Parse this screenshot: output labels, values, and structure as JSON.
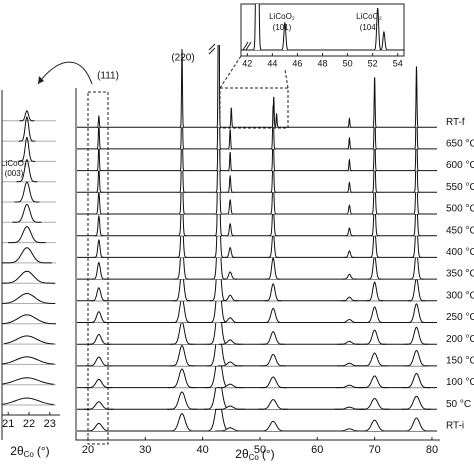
{
  "chart_data": [
    {
      "type": "stacked-pattern",
      "xlim": [
        18,
        81
      ],
      "xticks": [
        20,
        30,
        40,
        50,
        60,
        70,
        80
      ],
      "xlabel": {
        "main": "2θ",
        "sub": "Co",
        "unit": "(°)"
      },
      "annotations": [
        "(111)",
        "(220)"
      ],
      "series": [
        {
          "name": "RT-i",
          "width": 1.3,
          "peaks": {
            "x": [
              21.9,
              36.4,
              42.8,
              44.8,
              52.3,
              65.6,
              70.0,
              77.3
            ],
            "heights": [
              0.35,
              0.8,
              1.5,
              0.15,
              0.45,
              0.1,
              0.5,
              0.6
            ]
          }
        },
        {
          "name": "50 °C",
          "width": 1.3,
          "peaks": {
            "x": [
              21.9,
              36.4,
              42.8,
              44.8,
              52.3,
              65.6,
              70.0,
              77.3
            ],
            "heights": [
              0.35,
              0.8,
              1.55,
              0.15,
              0.45,
              0.1,
              0.5,
              0.6
            ]
          }
        },
        {
          "name": "100 °C",
          "width": 1.2,
          "peaks": {
            "x": [
              21.9,
              36.4,
              42.8,
              44.8,
              52.3,
              65.6,
              70.0,
              77.3
            ],
            "heights": [
              0.38,
              0.86,
              1.6,
              0.16,
              0.49,
              0.11,
              0.54,
              0.65
            ]
          }
        },
        {
          "name": "150 °C",
          "width": 1.1,
          "peaks": {
            "x": [
              21.9,
              36.4,
              42.8,
              44.8,
              52.3,
              65.6,
              70.0,
              77.3
            ],
            "heights": [
              0.41,
              0.94,
              1.8,
              0.18,
              0.53,
              0.12,
              0.59,
              0.71
            ]
          }
        },
        {
          "name": "200 °C",
          "width": 1.0,
          "peaks": {
            "x": [
              21.9,
              36.4,
              42.8,
              44.8,
              52.3,
              65.6,
              70.0,
              77.3
            ],
            "heights": [
              0.45,
              1.04,
              2.0,
              0.2,
              0.58,
              0.13,
              0.65,
              0.78
            ]
          }
        },
        {
          "name": "250 °C",
          "width": 0.9,
          "peaks": {
            "x": [
              21.9,
              36.4,
              42.8,
              44.8,
              52.3,
              65.6,
              70.0,
              77.3
            ],
            "heights": [
              0.5,
              1.15,
              2.2,
              0.22,
              0.65,
              0.14,
              0.72,
              0.86
            ]
          }
        },
        {
          "name": "300 °C",
          "width": 0.75,
          "peaks": {
            "x": [
              21.9,
              36.4,
              42.8,
              44.8,
              52.3,
              65.6,
              70.0,
              77.3
            ],
            "heights": [
              0.6,
              1.38,
              2.6,
              0.26,
              0.78,
              0.17,
              0.86,
              1.04
            ]
          }
        },
        {
          "name": "350 °C",
          "width": 0.6,
          "peaks": {
            "x": [
              21.9,
              36.4,
              42.8,
              44.8,
              52.3,
              65.6,
              70.0,
              77.3
            ],
            "heights": [
              0.76,
              1.74,
              3.3,
              0.33,
              0.98,
              0.22,
              1.08,
              1.3
            ]
          }
        },
        {
          "name": "400 °C",
          "width": 0.45,
          "peaks": {
            "x": [
              21.9,
              36.4,
              42.8,
              44.8,
              52.3,
              65.6,
              70.0,
              77.3
            ],
            "heights": [
              0.8,
              2.0,
              4.3,
              0.45,
              1.2,
              0.3,
              1.4,
              1.7
            ]
          }
        },
        {
          "name": "450 °C",
          "width": 0.35,
          "peaks": {
            "x": [
              21.9,
              36.4,
              42.8,
              44.8,
              52.3,
              65.6,
              70.0,
              77.3
            ],
            "heights": [
              0.9,
              2.2,
              5.5,
              0.55,
              1.4,
              0.35,
              1.7,
              2.0
            ]
          }
        },
        {
          "name": "500 °C",
          "width": 0.3,
          "peaks": {
            "x": [
              21.9,
              36.4,
              42.8,
              44.8,
              52.3,
              65.6,
              70.0,
              77.3
            ],
            "heights": [
              1.0,
              2.4,
              6.5,
              0.65,
              1.6,
              0.4,
              1.9,
              2.3
            ]
          }
        },
        {
          "name": "550 °C",
          "width": 0.25,
          "peaks": {
            "x": [
              21.9,
              36.4,
              42.8,
              44.8,
              52.3,
              65.6,
              70.0,
              77.3
            ],
            "heights": [
              1.1,
              2.6,
              7.8,
              0.75,
              1.8,
              0.45,
              2.1,
              2.6
            ]
          }
        },
        {
          "name": "600 °C",
          "width": 0.2,
          "peaks": {
            "x": [
              21.9,
              36.4,
              42.8,
              44.8,
              52.3,
              65.6,
              70.0,
              77.3
            ],
            "heights": [
              1.2,
              2.8,
              9.7,
              0.85,
              2.0,
              0.5,
              2.3,
              2.9
            ]
          }
        },
        {
          "name": "650 °C",
          "width": 0.2,
          "peaks": {
            "x": [
              21.9,
              36.4,
              42.8,
              44.8,
              52.3,
              65.6,
              70.0,
              77.3
            ],
            "heights": [
              1.2,
              2.8,
              10,
              0.9,
              2.0,
              0.5,
              2.4,
              3.0
            ]
          }
        },
        {
          "name": "RT-f",
          "width": 0.18,
          "peaks": {
            "x": [
              21.9,
              36.4,
              42.8,
              45.0,
              52.4,
              52.9,
              65.6,
              70.0,
              77.3
            ],
            "heights": [
              0.5,
              3.6,
              12,
              0.9,
              1.4,
              0.6,
              0.4,
              2.3,
              2.8
            ]
          }
        }
      ]
    },
    {
      "type": "zoom-left",
      "xlim": [
        20.7,
        23.3
      ],
      "xticks": [
        21,
        22,
        23
      ],
      "xlabel": {
        "main": "2θ",
        "sub": "Co",
        "unit": "(°)"
      },
      "annotations": [
        "LiCoO₂",
        "(003)"
      ]
    },
    {
      "type": "inset",
      "xlim": [
        41.5,
        54.5
      ],
      "xticks": [
        42,
        44,
        46,
        48,
        50,
        52,
        54
      ],
      "annotations": [
        "LiCoO₂",
        "(101)",
        "LiCoO₂",
        "(104)"
      ]
    }
  ]
}
